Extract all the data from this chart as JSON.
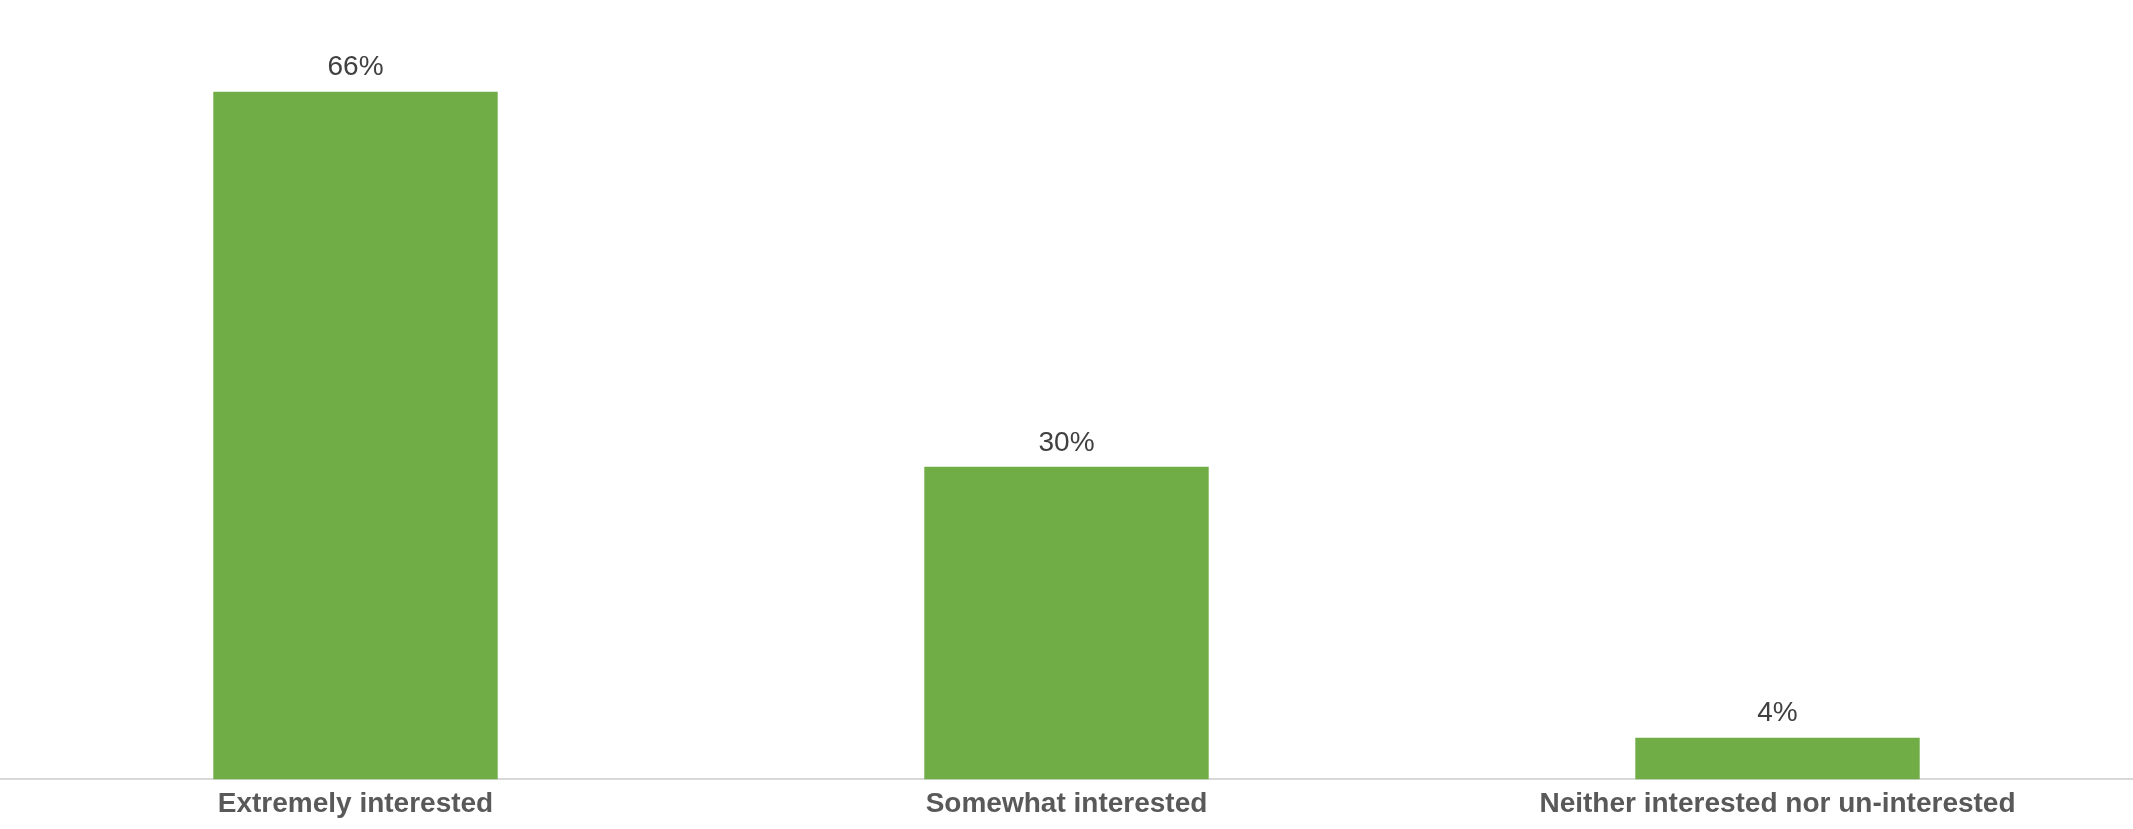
{
  "chart_data": {
    "type": "bar",
    "categories": [
      "Extremely interested",
      "Somewhat interested",
      "Neither interested nor un-interested"
    ],
    "values": [
      66,
      30,
      4
    ],
    "color": "#70ad47",
    "value_labels": [
      "66%",
      "30%",
      "4%"
    ],
    "grid": false,
    "legend": false
  }
}
